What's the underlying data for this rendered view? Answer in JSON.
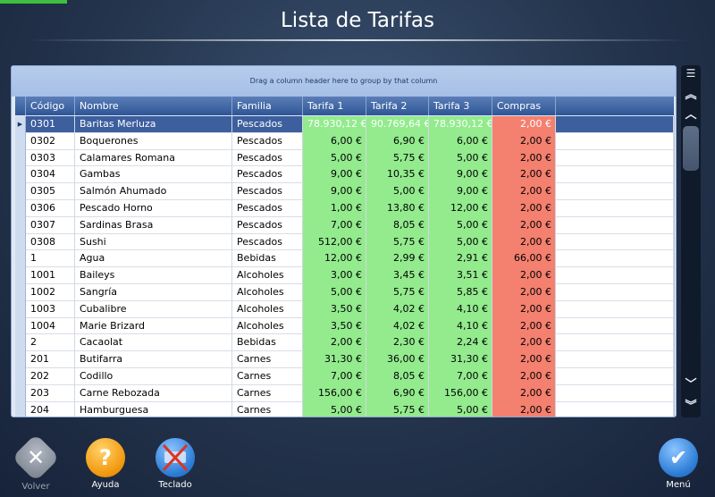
{
  "window": {
    "title": "Lista de Tarifas"
  },
  "grid": {
    "group_hint": "Drag a column header here to group by that column",
    "columns": [
      "Código",
      "Nombre",
      "Familia",
      "Tarifa 1",
      "Tarifa 2",
      "Tarifa 3",
      "Compras"
    ],
    "selected_row": 0,
    "rows": [
      {
        "codigo": "0301",
        "nombre": "Baritas Merluza",
        "familia": "Pescados",
        "t1": "78.930,12 €",
        "t2": "90.769,64 €",
        "t3": "78.930,12 €",
        "compras": "2,00 €"
      },
      {
        "codigo": "0302",
        "nombre": "Boquerones",
        "familia": "Pescados",
        "t1": "6,00 €",
        "t2": "6,90 €",
        "t3": "6,00 €",
        "compras": "2,00 €"
      },
      {
        "codigo": "0303",
        "nombre": "Calamares Romana",
        "familia": "Pescados",
        "t1": "5,00 €",
        "t2": "5,75 €",
        "t3": "5,00 €",
        "compras": "2,00 €"
      },
      {
        "codigo": "0304",
        "nombre": "Gambas",
        "familia": "Pescados",
        "t1": "9,00 €",
        "t2": "10,35 €",
        "t3": "9,00 €",
        "compras": "2,00 €"
      },
      {
        "codigo": "0305",
        "nombre": "Salmón Ahumado",
        "familia": "Pescados",
        "t1": "9,00 €",
        "t2": "5,00 €",
        "t3": "9,00 €",
        "compras": "2,00 €"
      },
      {
        "codigo": "0306",
        "nombre": "Pescado Horno",
        "familia": "Pescados",
        "t1": "1,00 €",
        "t2": "13,80 €",
        "t3": "12,00 €",
        "compras": "2,00 €"
      },
      {
        "codigo": "0307",
        "nombre": "Sardinas Brasa",
        "familia": "Pescados",
        "t1": "7,00 €",
        "t2": "8,05 €",
        "t3": "5,00 €",
        "compras": "2,00 €"
      },
      {
        "codigo": "0308",
        "nombre": "Sushi",
        "familia": "Pescados",
        "t1": "512,00 €",
        "t2": "5,75 €",
        "t3": "5,00 €",
        "compras": "2,00 €"
      },
      {
        "codigo": "1",
        "nombre": "Agua",
        "familia": "Bebidas",
        "t1": "12,00 €",
        "t2": "2,99 €",
        "t3": "2,91 €",
        "compras": "66,00 €"
      },
      {
        "codigo": "1001",
        "nombre": "Baileys",
        "familia": "Alcoholes",
        "t1": "3,00 €",
        "t2": "3,45 €",
        "t3": "3,51 €",
        "compras": "2,00 €"
      },
      {
        "codigo": "1002",
        "nombre": "Sangría",
        "familia": "Alcoholes",
        "t1": "5,00 €",
        "t2": "5,75 €",
        "t3": "5,85 €",
        "compras": "2,00 €"
      },
      {
        "codigo": "1003",
        "nombre": "Cubalibre",
        "familia": "Alcoholes",
        "t1": "3,50 €",
        "t2": "4,02 €",
        "t3": "4,10 €",
        "compras": "2,00 €"
      },
      {
        "codigo": "1004",
        "nombre": "Marie Brizard",
        "familia": "Alcoholes",
        "t1": "3,50 €",
        "t2": "4,02 €",
        "t3": "4,10 €",
        "compras": "2,00 €"
      },
      {
        "codigo": "2",
        "nombre": "Cacaolat",
        "familia": "Bebidas",
        "t1": "2,00 €",
        "t2": "2,30 €",
        "t3": "2,24 €",
        "compras": "2,00 €"
      },
      {
        "codigo": "201",
        "nombre": "Butifarra",
        "familia": "Carnes",
        "t1": "31,30 €",
        "t2": "36,00 €",
        "t3": "31,30 €",
        "compras": "2,00 €"
      },
      {
        "codigo": "202",
        "nombre": "Codillo",
        "familia": "Carnes",
        "t1": "7,00 €",
        "t2": "8,05 €",
        "t3": "7,00 €",
        "compras": "2,00 €"
      },
      {
        "codigo": "203",
        "nombre": "Carne Rebozada",
        "familia": "Carnes",
        "t1": "156,00 €",
        "t2": "6,90 €",
        "t3": "156,00 €",
        "compras": "2,00 €"
      },
      {
        "codigo": "204",
        "nombre": "Hamburguesa",
        "familia": "Carnes",
        "t1": "5,00 €",
        "t2": "5,75 €",
        "t3": "5,00 €",
        "compras": "2,00 €"
      }
    ]
  },
  "toolbar": {
    "volver_label": "Volver",
    "ayuda_label": "Ayuda",
    "teclado_label": "Teclado",
    "menu_label": "Menú"
  },
  "icons": {
    "volver": "close-icon",
    "ayuda": "question-icon",
    "teclado": "keyboard-disabled-icon",
    "menu": "checkmark-icon"
  },
  "colors": {
    "tarifa_cell": "#93eb8e",
    "compras_cell": "#f4806f",
    "header": "#2e5596",
    "selected_row": "#3d5f9e"
  }
}
